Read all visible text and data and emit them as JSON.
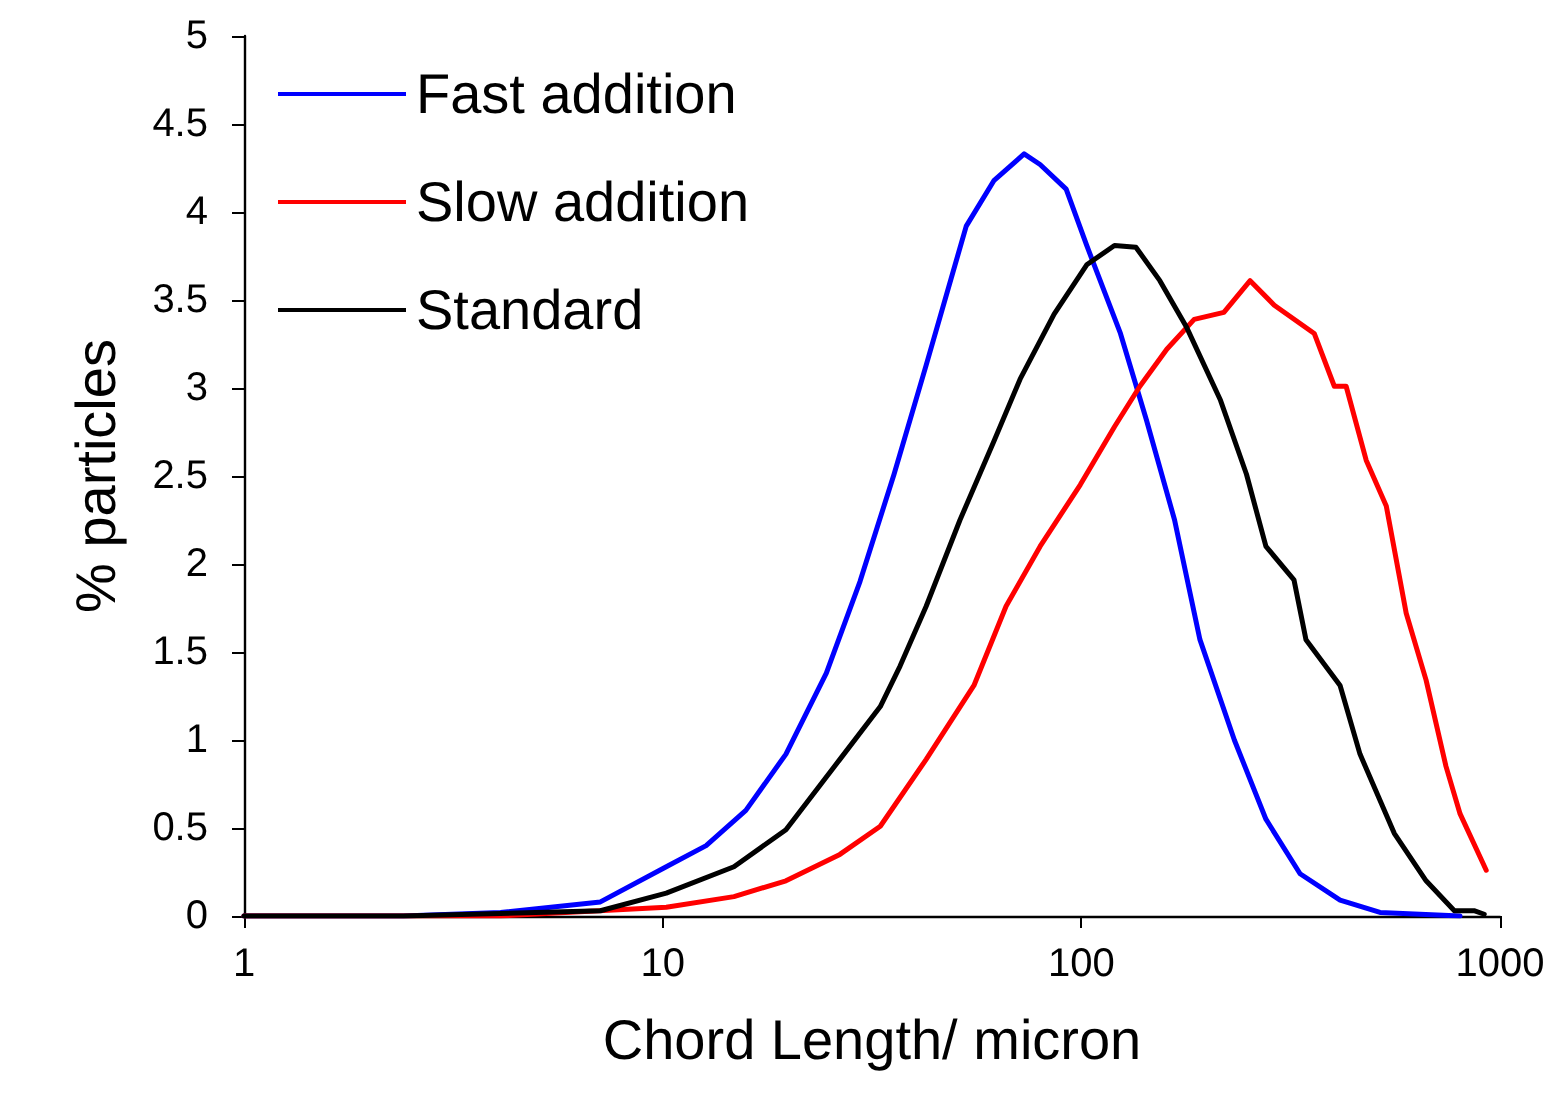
{
  "chart_data": {
    "type": "line",
    "xlabel": "Chord Length/ micron",
    "ylabel": "% particles",
    "log": "x",
    "grid": false,
    "legend": "top left",
    "marker": "none",
    "line_style": "solid",
    "xlim": [
      1,
      1000
    ],
    "xticks": [
      1,
      10,
      100,
      1000
    ],
    "ylim": [
      0,
      5
    ],
    "yticks": [
      0,
      0.5,
      1,
      1.5,
      2,
      2.5,
      3,
      3.5,
      4,
      4.5,
      5
    ],
    "series": [
      {
        "name": "Fast addition",
        "color": "#0000ff",
        "x": [
          1,
          2.4,
          4.1,
          7.1,
          10.2,
          12.7,
          15.8,
          19.7,
          24.6,
          29.6,
          35.7,
          42.6,
          53.1,
          61.9,
          73,
          79.7,
          92,
          103,
          124,
          143,
          167,
          192,
          232,
          276,
          333,
          415,
          517,
          803
        ],
        "values": [
          0,
          0,
          0.02,
          0.08,
          0.28,
          0.4,
          0.6,
          0.92,
          1.38,
          1.9,
          2.51,
          3.13,
          3.92,
          4.18,
          4.33,
          4.27,
          4.13,
          3.81,
          3.31,
          2.82,
          2.25,
          1.57,
          1,
          0.55,
          0.24,
          0.09,
          0.02,
          0
        ]
      },
      {
        "name": "Slow addition",
        "color": "#ff0000",
        "x": [
          1,
          4.1,
          10.2,
          14.8,
          19.7,
          26.5,
          33.1,
          42.6,
          55.4,
          66.1,
          79.7,
          99.4,
          120,
          138,
          160,
          186,
          219,
          253,
          289,
          360,
          402,
          429,
          479,
          535,
          597,
          666,
          743,
          803,
          927
        ],
        "values": [
          0,
          0,
          0.05,
          0.11,
          0.2,
          0.35,
          0.51,
          0.89,
          1.31,
          1.76,
          2.1,
          2.45,
          2.78,
          3.01,
          3.22,
          3.39,
          3.43,
          3.61,
          3.47,
          3.31,
          3.01,
          3.01,
          2.59,
          2.33,
          1.72,
          1.34,
          0.85,
          0.58,
          0.26
        ]
      },
      {
        "name": "Standard",
        "color": "#000000",
        "x": [
          1,
          2.4,
          7.1,
          10.2,
          14.8,
          19.7,
          26.5,
          33.1,
          36.9,
          42.6,
          51.3,
          61.9,
          71.4,
          86.1,
          103,
          120,
          135,
          154,
          178,
          215,
          248,
          276,
          322,
          344,
          415,
          463,
          559,
          666,
          778,
          867,
          917
        ],
        "values": [
          0,
          0,
          0.03,
          0.13,
          0.28,
          0.49,
          0.89,
          1.19,
          1.42,
          1.76,
          2.25,
          2.7,
          3.05,
          3.42,
          3.7,
          3.81,
          3.8,
          3.61,
          3.35,
          2.93,
          2.51,
          2.1,
          1.91,
          1.57,
          1.31,
          0.92,
          0.47,
          0.2,
          0.03,
          0.03,
          0.01
        ]
      }
    ]
  }
}
